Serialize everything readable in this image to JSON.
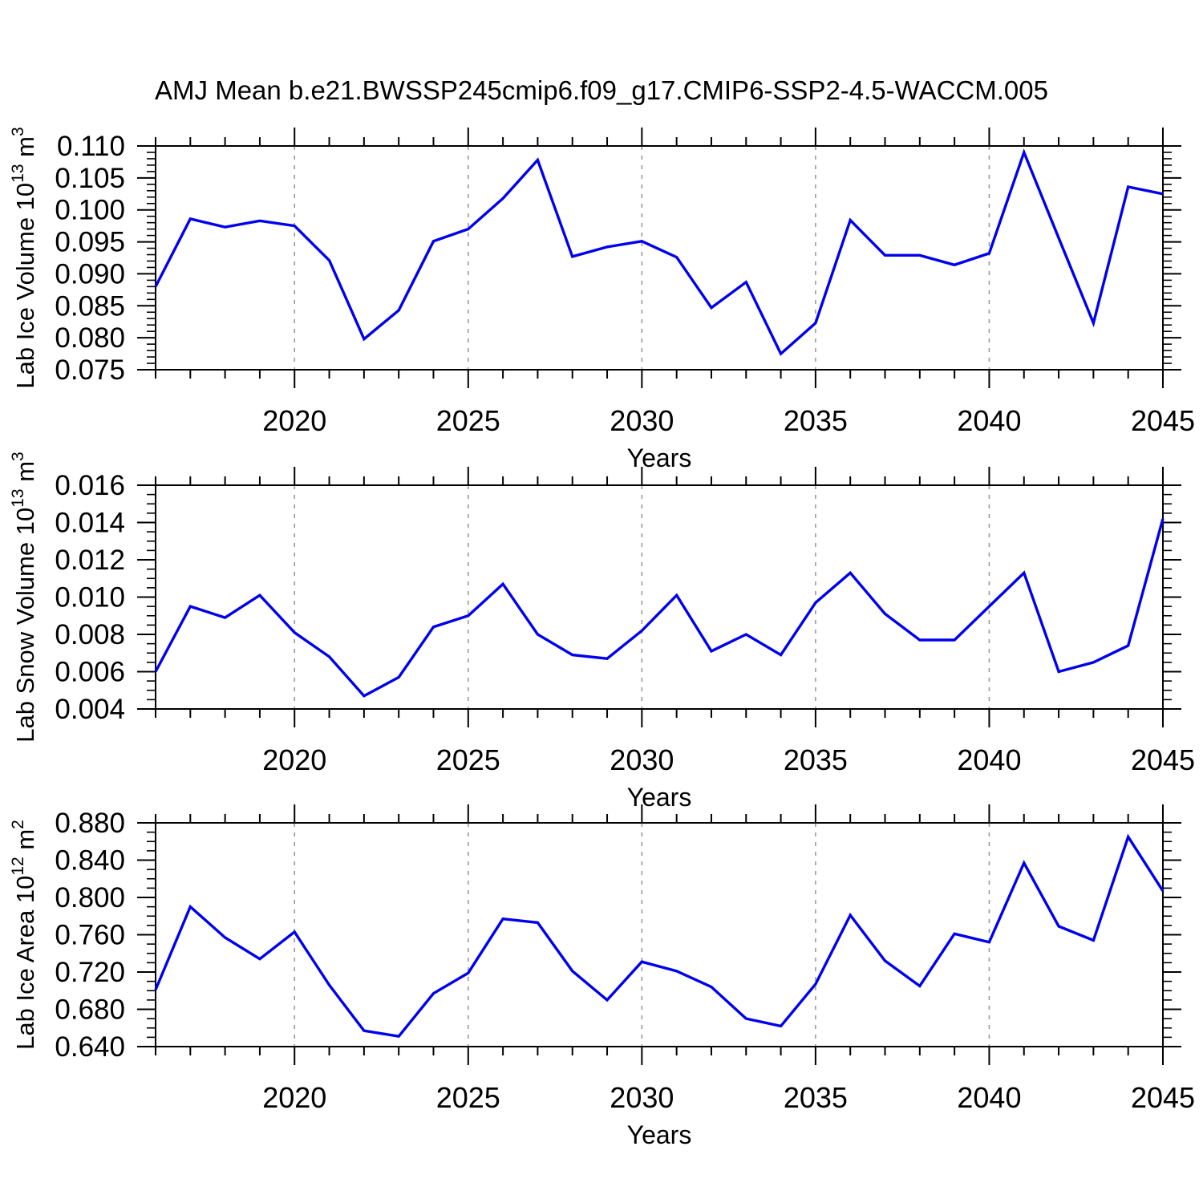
{
  "title": "AMJ Mean b.e21.BWSSP245cmip6.f09_g17.CMIP6-SSP2-4.5-WACCM.005",
  "colors": {
    "line": "#0000f0",
    "grid": "#9a9a9a",
    "frame": "#000000",
    "text": "#000000",
    "background": "#ffffff"
  },
  "x_axis": {
    "label": "Years",
    "range": [
      2016,
      2045
    ],
    "minor_step": 1,
    "major_ticks": [
      2020,
      2025,
      2030,
      2035,
      2040,
      2045
    ],
    "major_tick_labels": [
      "2020",
      "2025",
      "2030",
      "2035",
      "2040",
      "2045"
    ],
    "gridline_years": [
      2020,
      2025,
      2030,
      2035,
      2040
    ]
  },
  "chart_data": [
    {
      "type": "line",
      "name": "lab-ice-volume",
      "ylabel_text": "Lab Ice Volume 10^13 m^3",
      "ylabel_parts": [
        {
          "t": "Lab Ice Volume 10",
          "sup": false
        },
        {
          "t": "13",
          "sup": true
        },
        {
          "t": " m",
          "sup": false
        },
        {
          "t": "3",
          "sup": true
        }
      ],
      "xlabel": "Years",
      "ylim": [
        0.075,
        0.11
      ],
      "y_major_step": 0.005,
      "y_minor_step": 0.001,
      "y_tick_labels": [
        "0.075",
        "0.080",
        "0.085",
        "0.090",
        "0.095",
        "0.100",
        "0.105",
        "0.110"
      ],
      "x_range": [
        2016,
        2045
      ],
      "x_step": 1,
      "values": [
        0.088,
        0.0986,
        0.0973,
        0.0983,
        0.0975,
        0.0921,
        0.0798,
        0.0843,
        0.0951,
        0.097,
        0.1018,
        0.1078,
        0.0927,
        0.0942,
        0.0951,
        0.0926,
        0.0847,
        0.0887,
        0.0775,
        0.0823,
        0.0984,
        0.0929,
        0.0929,
        0.0914,
        0.0932,
        0.109,
        0.0956,
        0.0823,
        0.1036,
        0.1025
      ],
      "grid": "vertical-dashed",
      "legend": "none"
    },
    {
      "type": "line",
      "name": "lab-snow-volume",
      "ylabel_text": "Lab Snow Volume 10^13 m^3",
      "ylabel_parts": [
        {
          "t": "Lab Snow Volume 10",
          "sup": false
        },
        {
          "t": "13",
          "sup": true
        },
        {
          "t": " m",
          "sup": false
        },
        {
          "t": "3",
          "sup": true
        }
      ],
      "xlabel": "Years",
      "ylim": [
        0.004,
        0.016
      ],
      "y_major_step": 0.002,
      "y_minor_step": 0.0005,
      "y_tick_labels": [
        "0.004",
        "0.006",
        "0.008",
        "0.010",
        "0.012",
        "0.014",
        "0.016"
      ],
      "x_range": [
        2016,
        2045
      ],
      "x_step": 1,
      "values": [
        0.006,
        0.0095,
        0.0089,
        0.0101,
        0.0081,
        0.0068,
        0.0047,
        0.0057,
        0.0084,
        0.009,
        0.0107,
        0.008,
        0.0069,
        0.0067,
        0.0082,
        0.0101,
        0.0071,
        0.008,
        0.0069,
        0.0097,
        0.0113,
        0.0091,
        0.0077,
        0.0077,
        0.0095,
        0.0113,
        0.006,
        0.0065,
        0.0074,
        0.0142
      ],
      "grid": "vertical-dashed",
      "legend": "none"
    },
    {
      "type": "line",
      "name": "lab-ice-area",
      "ylabel_text": "Lab Ice Area 10^12 m^2",
      "ylabel_parts": [
        {
          "t": "Lab Ice Area 10",
          "sup": false
        },
        {
          "t": "12",
          "sup": true
        },
        {
          "t": " m",
          "sup": false
        },
        {
          "t": "2",
          "sup": true
        }
      ],
      "xlabel": "Years",
      "ylim": [
        0.64,
        0.88
      ],
      "y_major_step": 0.04,
      "y_minor_step": 0.01,
      "y_tick_labels": [
        "0.640",
        "0.680",
        "0.720",
        "0.760",
        "0.800",
        "0.840",
        "0.880"
      ],
      "x_range": [
        2016,
        2045
      ],
      "x_step": 1,
      "values": [
        0.701,
        0.79,
        0.757,
        0.734,
        0.763,
        0.706,
        0.657,
        0.651,
        0.697,
        0.719,
        0.777,
        0.773,
        0.721,
        0.69,
        0.731,
        0.721,
        0.704,
        0.67,
        0.662,
        0.707,
        0.781,
        0.732,
        0.705,
        0.761,
        0.752,
        0.837,
        0.769,
        0.754,
        0.865,
        0.807
      ],
      "grid": "vertical-dashed",
      "legend": "none"
    }
  ]
}
